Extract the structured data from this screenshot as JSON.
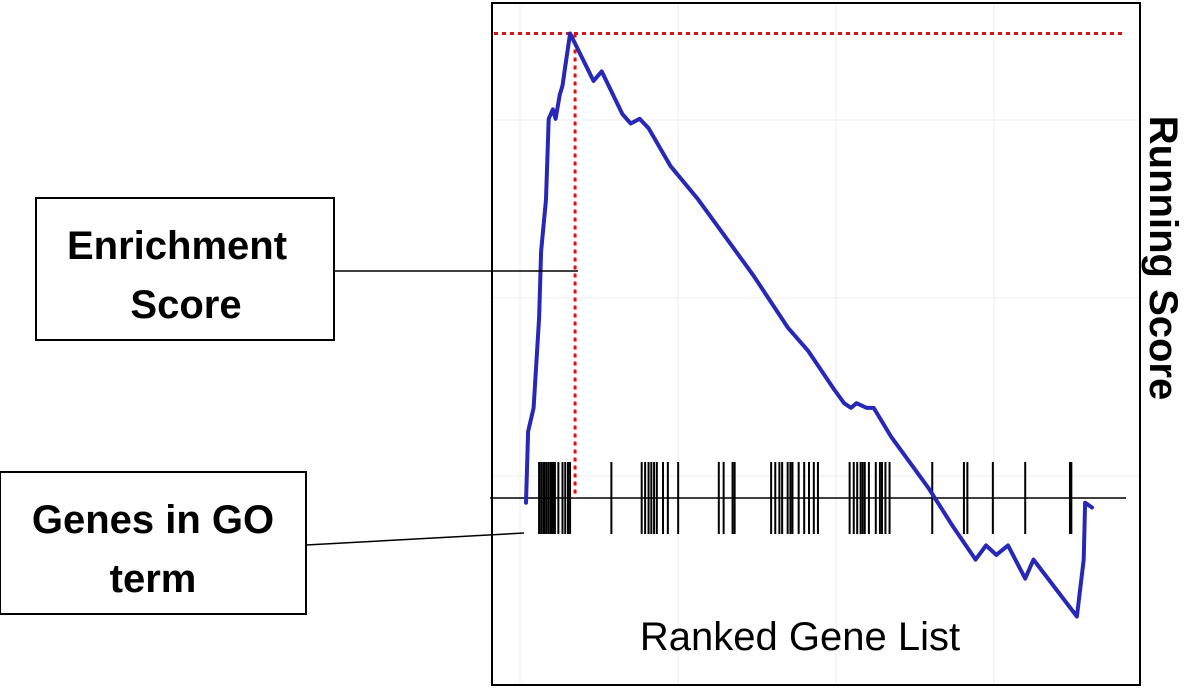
{
  "chart_data": {
    "type": "line",
    "title": "",
    "xlabel": "Ranked Gene List",
    "ylabel": "Running Score",
    "xlim": [
      0,
      1000
    ],
    "ylim": [
      -0.28,
      1.0
    ],
    "grid": true,
    "legend": "none",
    "colors": {
      "curve": "#2727b8",
      "max_line": "#e01010",
      "hits": "#000000",
      "grid": "#ececec"
    },
    "series": [
      {
        "values": [
          {
            "x": 0,
            "y": -0.01
          },
          {
            "x": 3,
            "y": 0.14
          },
          {
            "x": 11,
            "y": 0.19
          },
          {
            "x": 19,
            "y": 0.38
          },
          {
            "x": 22,
            "y": 0.52
          },
          {
            "x": 29,
            "y": 0.63
          },
          {
            "x": 33,
            "y": 0.8
          },
          {
            "x": 39,
            "y": 0.82
          },
          {
            "x": 43,
            "y": 0.8
          },
          {
            "x": 49,
            "y": 0.85
          },
          {
            "x": 53,
            "y": 0.87
          },
          {
            "x": 57,
            "y": 0.91
          },
          {
            "x": 64,
            "y": 0.98
          },
          {
            "x": 98,
            "y": 0.88
          },
          {
            "x": 110,
            "y": 0.9
          },
          {
            "x": 140,
            "y": 0.81
          },
          {
            "x": 152,
            "y": 0.79
          },
          {
            "x": 165,
            "y": 0.8
          },
          {
            "x": 178,
            "y": 0.78
          },
          {
            "x": 210,
            "y": 0.7
          },
          {
            "x": 250,
            "y": 0.63
          },
          {
            "x": 290,
            "y": 0.55
          },
          {
            "x": 330,
            "y": 0.47
          },
          {
            "x": 380,
            "y": 0.36
          },
          {
            "x": 410,
            "y": 0.31
          },
          {
            "x": 447,
            "y": 0.23
          },
          {
            "x": 462,
            "y": 0.2
          },
          {
            "x": 472,
            "y": 0.19
          },
          {
            "x": 480,
            "y": 0.2
          },
          {
            "x": 495,
            "y": 0.19
          },
          {
            "x": 505,
            "y": 0.19
          },
          {
            "x": 530,
            "y": 0.13
          },
          {
            "x": 560,
            "y": 0.07
          },
          {
            "x": 585,
            "y": 0.02
          },
          {
            "x": 620,
            "y": -0.06
          },
          {
            "x": 653,
            "y": -0.13
          },
          {
            "x": 668,
            "y": -0.1
          },
          {
            "x": 683,
            "y": -0.12
          },
          {
            "x": 700,
            "y": -0.1
          },
          {
            "x": 725,
            "y": -0.17
          },
          {
            "x": 737,
            "y": -0.13
          },
          {
            "x": 800,
            "y": -0.25
          },
          {
            "x": 810,
            "y": -0.13
          },
          {
            "x": 812,
            "y": -0.01
          },
          {
            "x": 822,
            "y": -0.02
          }
        ]
      }
    ],
    "max_es": {
      "x": 64,
      "y": 0.98
    },
    "gene_hits": [
      19,
      22,
      25,
      27,
      30,
      33,
      36,
      38,
      40,
      42,
      47,
      53,
      57,
      61,
      64,
      124,
      168,
      173,
      178,
      182,
      186,
      190,
      199,
      206,
      221,
      280,
      287,
      300,
      303,
      356,
      362,
      368,
      372,
      380,
      384,
      387,
      396,
      404,
      411,
      418,
      424,
      470,
      476,
      481,
      486,
      489,
      492,
      498,
      508,
      514,
      517,
      522,
      528,
      590,
      636,
      641,
      678,
      725,
      790,
      792
    ],
    "annotations": [
      {
        "id": "enrichment-score",
        "lines": [
          "Enrichment",
          "Score"
        ]
      },
      {
        "id": "genes-in-go-term",
        "lines": [
          "Genes in GO",
          "term"
        ]
      }
    ]
  }
}
